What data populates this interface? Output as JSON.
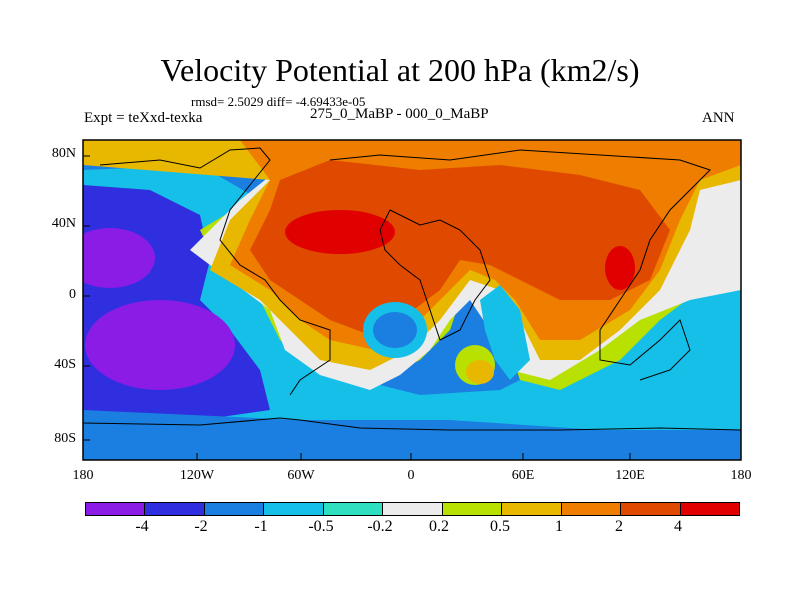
{
  "title": "Velocity Potential at 200 hPa (km2/s)",
  "stats": "rmsd= 2.5029 diff= -4.69433e-05",
  "experiment": "Expt = teXxd-texka",
  "subtitle": "275_0_MaBP - 000_0_MaBP",
  "season": "ANN",
  "lat_labels": [
    "80N",
    "40N",
    "0",
    "40S",
    "80S"
  ],
  "lon_labels": [
    "180",
    "120W",
    "60W",
    "0",
    "60E",
    "120E",
    "180"
  ],
  "colorbar": {
    "levels": [
      "-4",
      "-2",
      "-1",
      "-0.5",
      "-0.2",
      "0.2",
      "0.5",
      "1",
      "2",
      "4"
    ],
    "colors": [
      "#8a1ce6",
      "#2f2fe0",
      "#1a7fe0",
      "#15bfe8",
      "#2ee0c0",
      "#ececec",
      "#b8e000",
      "#e8b800",
      "#ee7d00",
      "#e04a00",
      "#e00000"
    ]
  }
}
